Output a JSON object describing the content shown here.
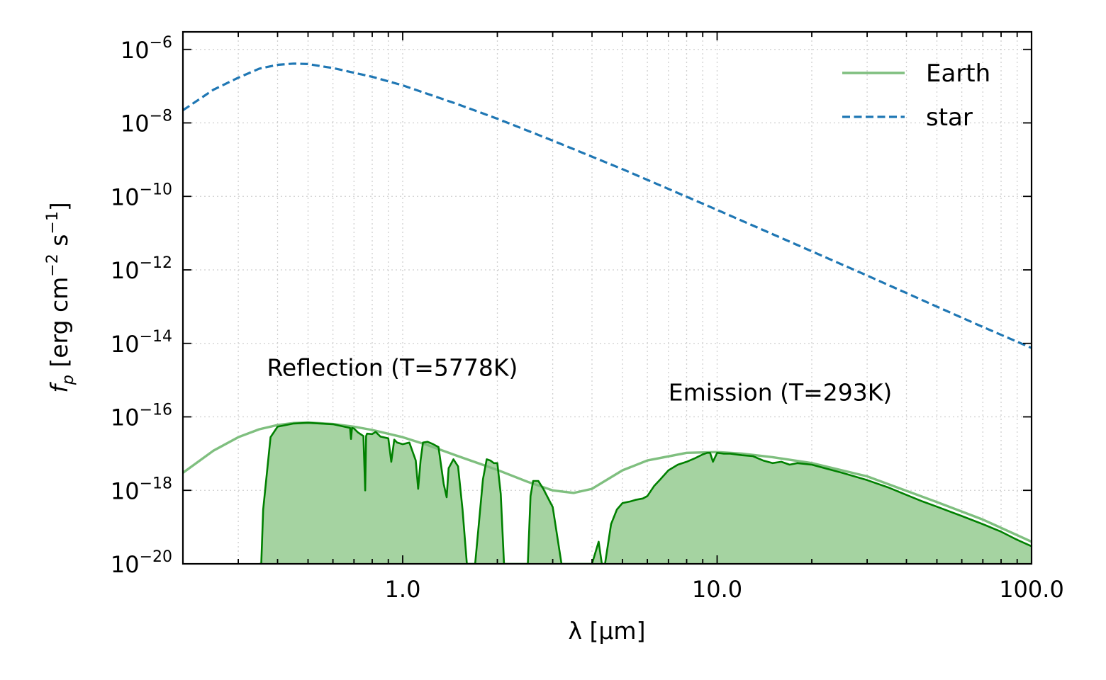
{
  "chart_data": {
    "type": "line",
    "xlabel": "λ [μm]",
    "ylabel": "f_p [erg cm^-2 s^-1]",
    "x_scale": "log",
    "y_scale": "log",
    "xlim": [
      0.2,
      100
    ],
    "ylim": [
      1e-20,
      3e-06
    ],
    "grid": true,
    "legend_position": "top-right",
    "x_ticks": [
      {
        "value": 1,
        "label": "1.0"
      },
      {
        "value": 10,
        "label": "10.0"
      },
      {
        "value": 100,
        "label": "100.0"
      }
    ],
    "y_ticks": [
      {
        "value": 1e-06,
        "base": "10",
        "exp": "−6"
      },
      {
        "value": 1e-08,
        "base": "10",
        "exp": "−8"
      },
      {
        "value": 1e-10,
        "base": "10",
        "exp": "−10"
      },
      {
        "value": 1e-12,
        "base": "10",
        "exp": "−12"
      },
      {
        "value": 1e-14,
        "base": "10",
        "exp": "−14"
      },
      {
        "value": 1e-16,
        "base": "10",
        "exp": "−16"
      },
      {
        "value": 1e-18,
        "base": "10",
        "exp": "−18"
      },
      {
        "value": 1e-20,
        "base": "10",
        "exp": "−20"
      }
    ],
    "series": [
      {
        "name": "Earth",
        "style": "solid",
        "color": "#7fbf7f",
        "x": [
          0.2,
          0.25,
          0.3,
          0.35,
          0.4,
          0.45,
          0.5,
          0.6,
          0.7,
          0.8,
          1.0,
          1.2,
          1.5,
          2.0,
          2.5,
          3.0,
          3.5,
          4.0,
          5.0,
          6.0,
          8.0,
          10,
          12,
          15,
          20,
          30,
          50,
          70,
          100
        ],
        "y": [
          3e-18,
          1.2e-17,
          2.8e-17,
          4.6e-17,
          6e-17,
          6.8e-17,
          7e-17,
          6.4e-17,
          5.4e-17,
          4.4e-17,
          2.8e-17,
          1.7e-17,
          8.5e-18,
          3.6e-18,
          1.7e-18,
          1e-18,
          8.5e-19,
          1.1e-18,
          3.5e-18,
          6.5e-18,
          1.05e-17,
          1.1e-17,
          1e-17,
          8e-18,
          5.5e-18,
          2.4e-18,
          4.8e-19,
          1.6e-19,
          4e-20
        ]
      },
      {
        "name": "star",
        "style": "dashed",
        "color": "#1f77b4",
        "x": [
          0.2,
          0.25,
          0.3,
          0.35,
          0.4,
          0.45,
          0.5,
          0.6,
          0.8,
          1.0,
          1.5,
          2.0,
          3.0,
          5.0,
          7.0,
          10,
          20,
          30,
          50,
          70,
          100
        ],
        "y": [
          2.2e-08,
          8e-08,
          1.7e-07,
          3e-07,
          3.8e-07,
          4.1e-07,
          4e-07,
          3.1e-07,
          1.8e-07,
          1.05e-07,
          3.2e-08,
          1.3e-08,
          3.3e-09,
          5.5e-10,
          1.6e-10,
          4.3e-11,
          3.2e-12,
          7e-13,
          1e-13,
          2.8e-14,
          7.5e-15
        ]
      },
      {
        "name": "",
        "style": "filled-outline",
        "color": "#008000",
        "fill": "#a5d3a1",
        "x": [
          0.35,
          0.355,
          0.36,
          0.38,
          0.4,
          0.45,
          0.5,
          0.6,
          0.68,
          0.685,
          0.69,
          0.7,
          0.72,
          0.75,
          0.76,
          0.765,
          0.77,
          0.8,
          0.82,
          0.85,
          0.9,
          0.92,
          0.94,
          0.96,
          1.0,
          1.05,
          1.1,
          1.12,
          1.14,
          1.16,
          1.2,
          1.25,
          1.3,
          1.35,
          1.38,
          1.4,
          1.45,
          1.5,
          1.55,
          1.6,
          1.7,
          1.8,
          1.85,
          1.9,
          1.95,
          2.0,
          2.05,
          2.1,
          2.2,
          2.3,
          2.4,
          2.5,
          2.55,
          2.6,
          2.7,
          2.8,
          3.0,
          3.2,
          3.5,
          3.8,
          4.0,
          4.2,
          4.3,
          4.4,
          4.6,
          4.8,
          5.0,
          5.3,
          5.5,
          5.8,
          6.0,
          6.3,
          6.6,
          7.0,
          7.5,
          8.0,
          8.5,
          9.0,
          9.3,
          9.5,
          9.7,
          10,
          10.5,
          11,
          12,
          13,
          14,
          15,
          16,
          17,
          18,
          20,
          22,
          25,
          30,
          35,
          40,
          45,
          50,
          60,
          70,
          80,
          90,
          100
        ],
        "y": [
          1e-20,
          1e-20,
          3e-19,
          2.8e-17,
          5.4e-17,
          6.6e-17,
          6.9e-17,
          6.3e-17,
          5e-17,
          2.5e-17,
          5e-17,
          4.8e-17,
          3.8e-17,
          3e-17,
          1e-18,
          3e-17,
          3.5e-17,
          3.4e-17,
          3.9e-17,
          2.9e-17,
          2.6e-17,
          6e-18,
          2.4e-17,
          2e-17,
          1.8e-17,
          2e-17,
          6.5e-18,
          1.1e-18,
          6.5e-18,
          2e-17,
          2.1e-17,
          1.8e-17,
          1.5e-17,
          1.5e-18,
          6.5e-19,
          4e-18,
          7e-18,
          4.5e-18,
          3e-19,
          1e-20,
          1e-20,
          2e-18,
          7e-18,
          6.5e-18,
          5.5e-18,
          5.5e-18,
          8e-19,
          1e-20,
          1e-20,
          1e-20,
          1e-20,
          1e-20,
          7e-19,
          1.8e-18,
          1.8e-18,
          1.1e-18,
          3.5e-19,
          1e-20,
          1e-20,
          1e-20,
          1e-20,
          4e-20,
          1e-20,
          1e-20,
          1.2e-19,
          3e-19,
          4.5e-19,
          5e-19,
          5.5e-19,
          6e-19,
          7e-19,
          1.3e-18,
          2e-18,
          3.5e-18,
          5e-18,
          6e-18,
          7.5e-18,
          9.5e-18,
          1.05e-17,
          1.05e-17,
          6e-18,
          1.05e-17,
          1e-17,
          1e-17,
          9e-18,
          8.5e-18,
          6.5e-18,
          5.5e-18,
          6e-18,
          5e-18,
          5.5e-18,
          5e-18,
          4e-18,
          3e-18,
          1.9e-18,
          1.2e-18,
          7.5e-19,
          5e-19,
          3.6e-19,
          2e-19,
          1.2e-19,
          7.5e-20,
          4.5e-20,
          3e-20
        ]
      }
    ],
    "annotations": [
      {
        "text": "Reflection (T=5778K)",
        "x": 0.37,
        "y": 1.3e-15
      },
      {
        "text": "Emission (T=293K)",
        "x": 7.0,
        "y": 2.8e-16
      }
    ]
  }
}
